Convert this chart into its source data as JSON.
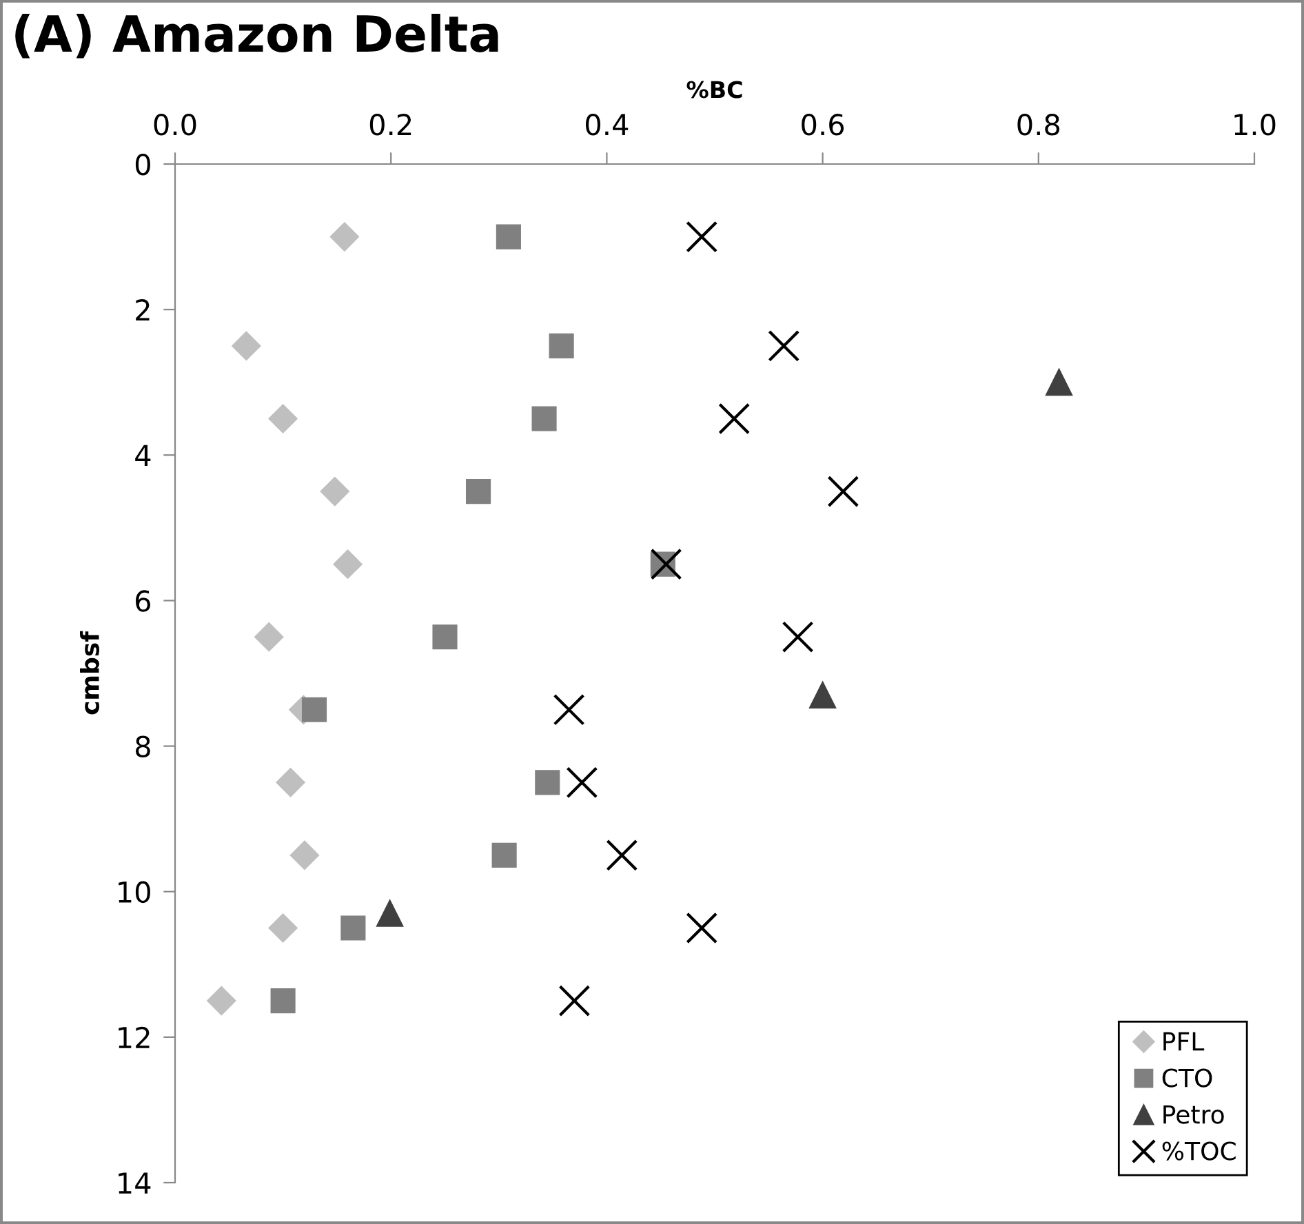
{
  "chart_data": {
    "type": "scatter",
    "title": "(A) Amazon Delta",
    "xlabel": "%BC",
    "ylabel": "cmbsf",
    "xlim": [
      0,
      1.0
    ],
    "xticks": [
      {
        "value": 0,
        "label": "0.0"
      },
      0.2,
      0.4,
      0.6,
      0.8,
      {
        "value": 1.0,
        "label": "1.0"
      }
    ],
    "ylim": [
      14,
      0
    ],
    "yticks": [
      0,
      2,
      4,
      6,
      8,
      10,
      12,
      14
    ],
    "grid": false,
    "legend": "bottom right",
    "series": [
      {
        "name": "PFL",
        "color": "#bfbfbf",
        "marker": "diamond",
        "x": [
          0.157,
          0.066,
          0.1,
          0.148,
          0.16,
          0.087,
          0.119,
          0.107,
          0.12,
          0.1,
          0.043
        ],
        "values": [
          1,
          2.5,
          3.5,
          4.5,
          5.5,
          6.5,
          7.5,
          8.5,
          9.5,
          10.5,
          11.5
        ]
      },
      {
        "name": "CTO",
        "color": "#808080",
        "marker": "square",
        "x": [
          0.309,
          0.358,
          0.342,
          0.281,
          0.452,
          0.25,
          0.129,
          0.345,
          0.305,
          0.165,
          0.1
        ],
        "values": [
          1,
          2.5,
          3.5,
          4.5,
          5.5,
          6.5,
          7.5,
          8.5,
          9.5,
          10.5,
          11.5
        ]
      },
      {
        "name": "Petro",
        "color": "#404040",
        "marker": "triangle",
        "x": [
          0.819,
          0.6,
          0.199
        ],
        "values": [
          3.0,
          7.3,
          10.3
        ]
      },
      {
        "name": "%TOC",
        "color": "#000000",
        "marker": "cross",
        "x": [
          0.488,
          0.564,
          0.518,
          0.619,
          0.455,
          0.577,
          0.365,
          0.377,
          0.414,
          0.488,
          0.37
        ],
        "values": [
          1,
          2.5,
          3.5,
          4.5,
          5.5,
          6.5,
          7.5,
          8.5,
          9.5,
          10.5,
          11.5
        ]
      }
    ]
  }
}
